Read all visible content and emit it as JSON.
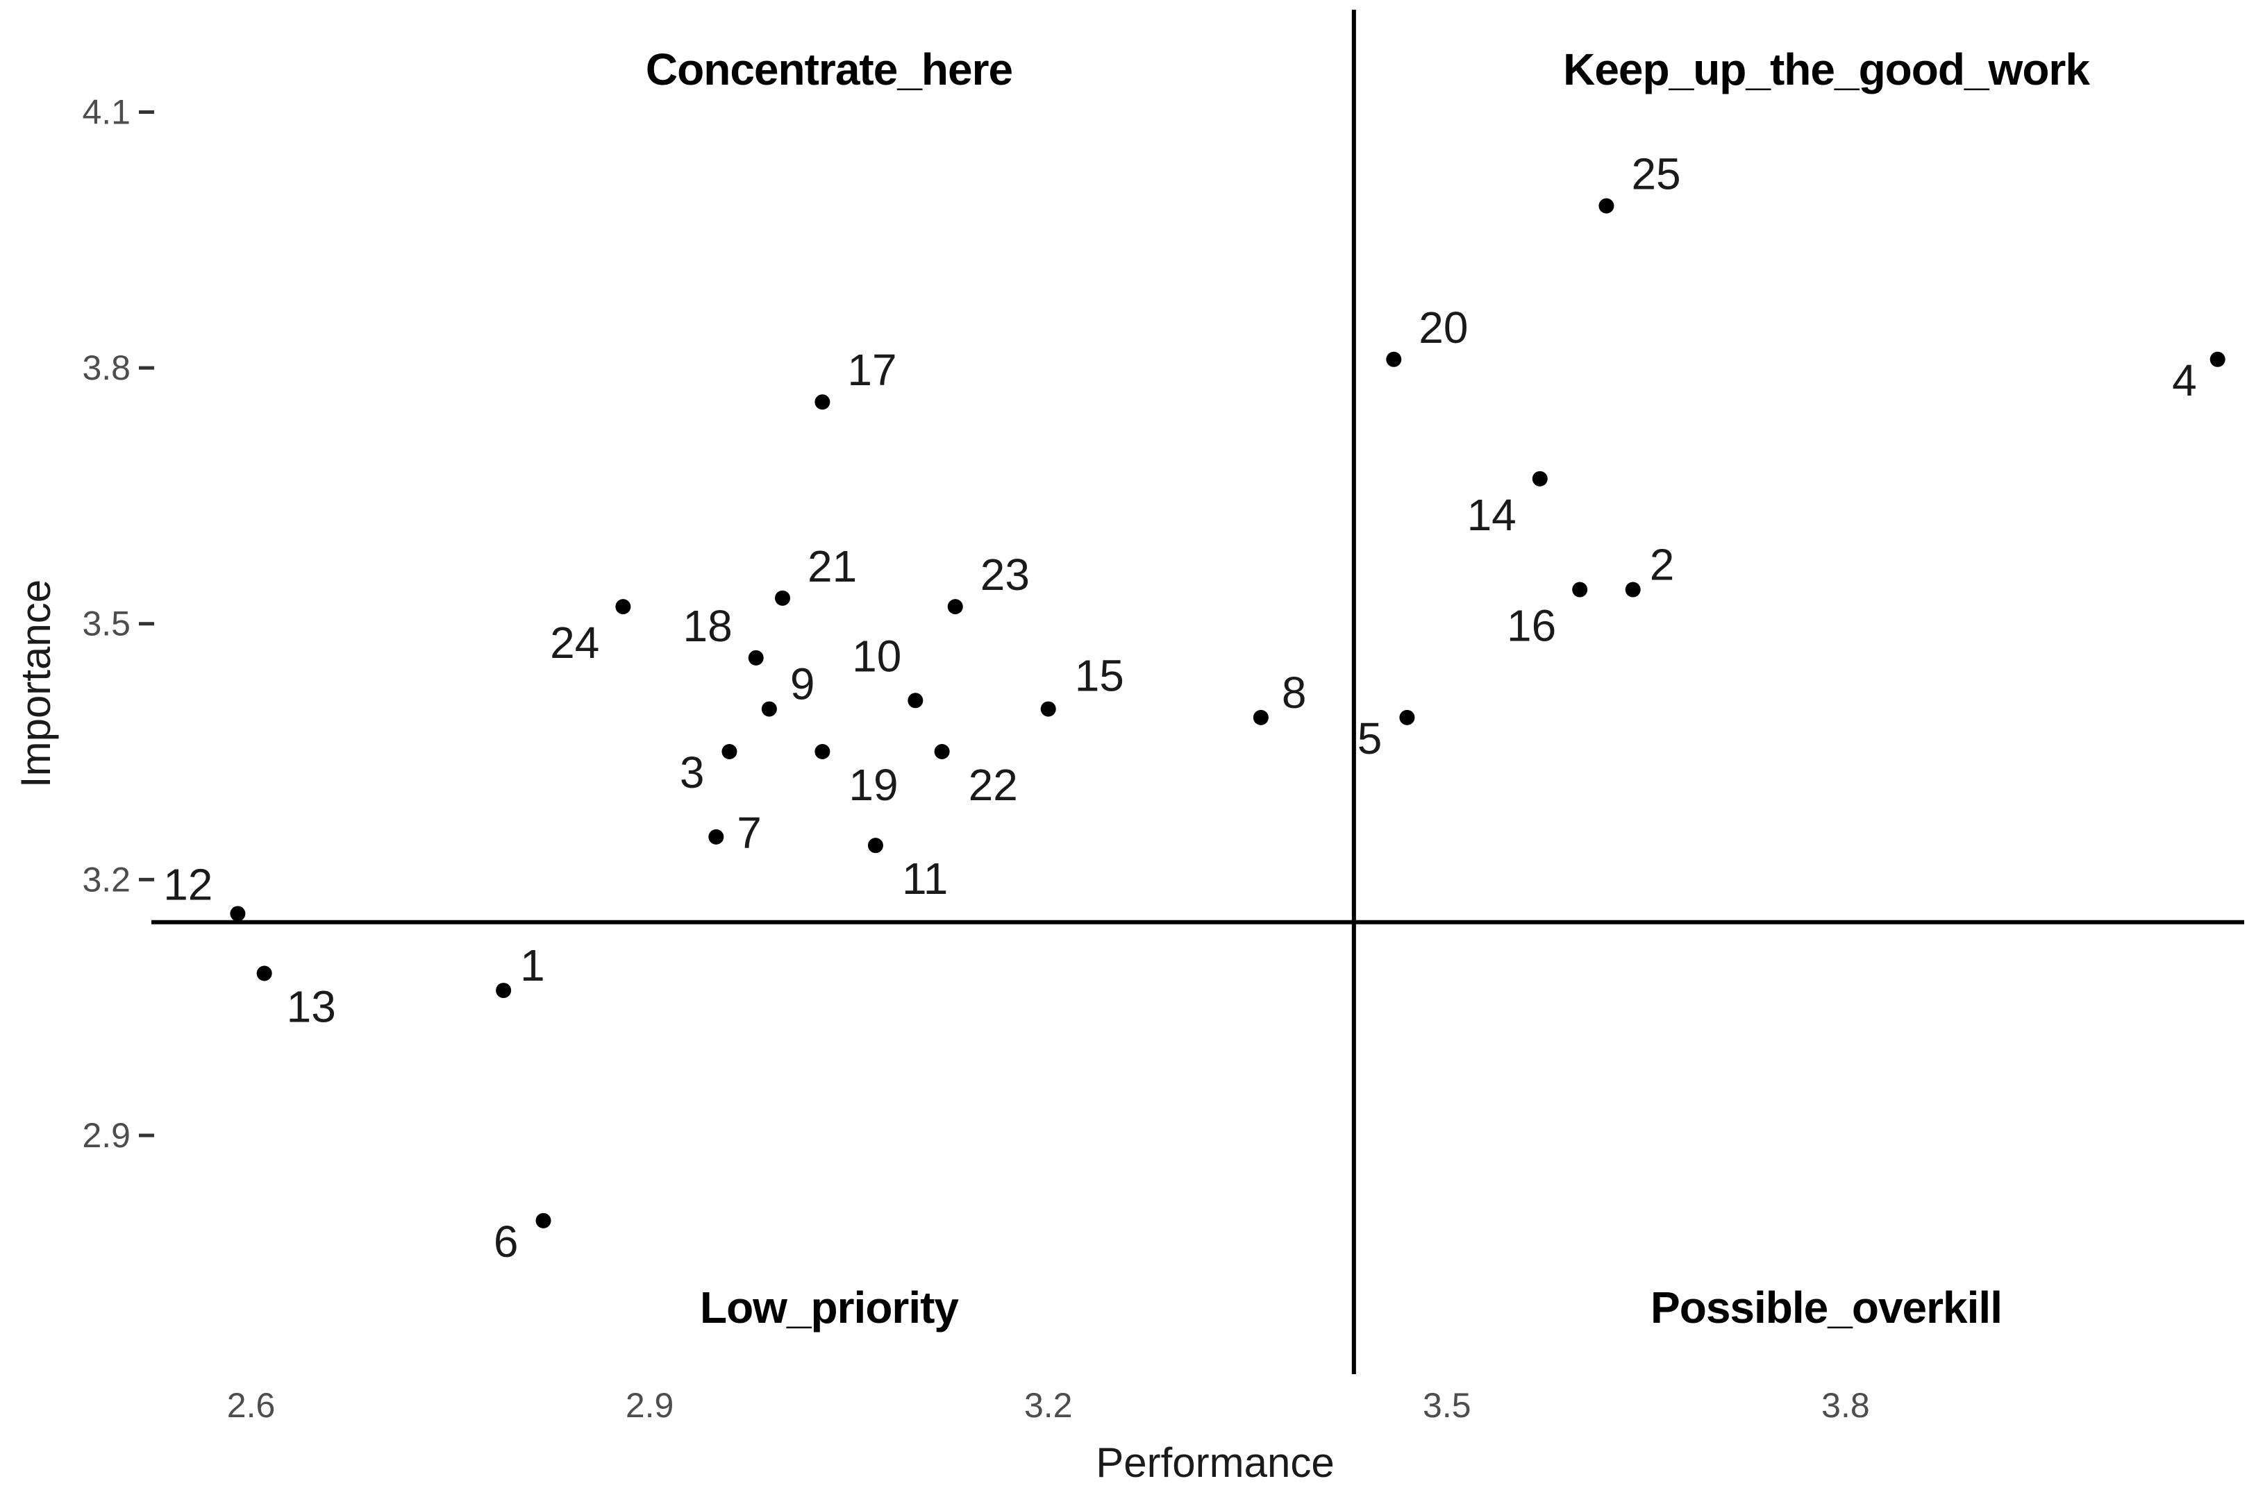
{
  "chart_data": {
    "type": "scatter",
    "xlabel": "Performance",
    "ylabel": "Importance",
    "xlim": [
      2.525,
      4.1
    ],
    "ylim": [
      2.62,
      4.22
    ],
    "x_ticks": [
      2.6,
      2.9,
      3.2,
      3.5,
      3.8
    ],
    "x_tick_labels": [
      "2.6",
      "2.9",
      "3.2",
      "3.5",
      "3.8"
    ],
    "y_ticks": [
      2.9,
      3.2,
      3.5,
      3.8,
      4.1
    ],
    "y_tick_labels": [
      "2.9",
      "3.2",
      "3.5",
      "3.8",
      "4.1"
    ],
    "grid": false,
    "reference_lines": {
      "vertical_x": 3.43,
      "horizontal_y": 3.15
    },
    "quadrant_labels": {
      "top_left": "Concentrate_here",
      "top_right": "Keep_up_the_good_work",
      "bottom_left": "Low_priority",
      "bottom_right": "Possible_overkill"
    },
    "point_color": "#000000",
    "points": [
      {
        "label": "1",
        "x": 2.79,
        "y": 3.07
      },
      {
        "label": "2",
        "x": 3.64,
        "y": 3.54
      },
      {
        "label": "3",
        "x": 2.96,
        "y": 3.35
      },
      {
        "label": "4",
        "x": 4.08,
        "y": 3.81
      },
      {
        "label": "5",
        "x": 3.47,
        "y": 3.39
      },
      {
        "label": "6",
        "x": 2.82,
        "y": 2.8
      },
      {
        "label": "7",
        "x": 2.95,
        "y": 3.25
      },
      {
        "label": "8",
        "x": 3.36,
        "y": 3.39
      },
      {
        "label": "9",
        "x": 2.99,
        "y": 3.4
      },
      {
        "label": "10",
        "x": 3.1,
        "y": 3.41
      },
      {
        "label": "11",
        "x": 3.07,
        "y": 3.24
      },
      {
        "label": "12",
        "x": 2.59,
        "y": 3.16
      },
      {
        "label": "13",
        "x": 2.61,
        "y": 3.09
      },
      {
        "label": "14",
        "x": 3.57,
        "y": 3.67
      },
      {
        "label": "15",
        "x": 3.2,
        "y": 3.4
      },
      {
        "label": "16",
        "x": 3.6,
        "y": 3.54
      },
      {
        "label": "17",
        "x": 3.03,
        "y": 3.76
      },
      {
        "label": "18",
        "x": 2.98,
        "y": 3.46
      },
      {
        "label": "19",
        "x": 3.03,
        "y": 3.35
      },
      {
        "label": "20",
        "x": 3.46,
        "y": 3.81
      },
      {
        "label": "21",
        "x": 3.0,
        "y": 3.53
      },
      {
        "label": "22",
        "x": 3.12,
        "y": 3.35
      },
      {
        "label": "23",
        "x": 3.13,
        "y": 3.52
      },
      {
        "label": "24",
        "x": 2.88,
        "y": 3.52
      },
      {
        "label": "25",
        "x": 3.62,
        "y": 3.99
      }
    ]
  }
}
